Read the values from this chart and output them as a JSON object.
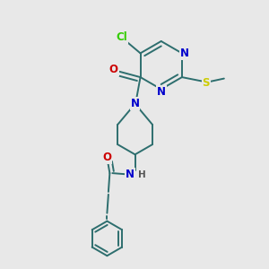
{
  "bg_color": "#e8e8e8",
  "bond_color": "#2d6e6e",
  "atom_colors": {
    "N": "#0000cc",
    "O": "#cc0000",
    "Cl": "#33cc00",
    "S": "#cccc00",
    "H": "#555555"
  },
  "font_size": 8.5,
  "line_width": 1.4,
  "figsize": [
    3.0,
    3.0
  ],
  "dpi": 100
}
